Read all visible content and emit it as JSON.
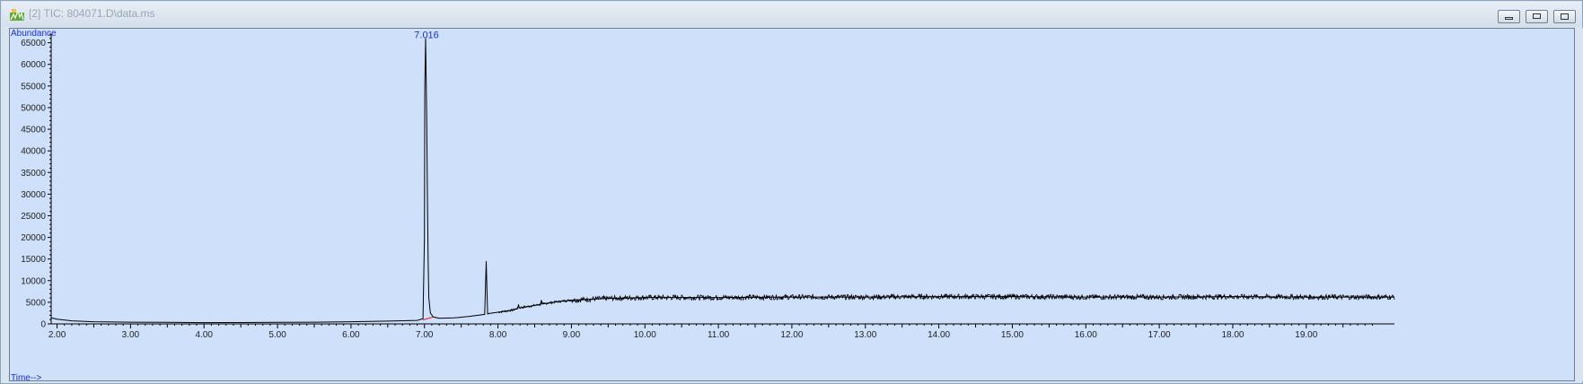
{
  "window": {
    "title": "[2] TIC: 804071.D\\data.ms",
    "icon": "chromatogram-app-icon",
    "buttons": [
      "minimize",
      "restore",
      "close"
    ]
  },
  "colors": {
    "plot_background": "#cfe0fb",
    "trace": "#000000",
    "axis_title": "#1a2fd0",
    "baseline_marker": "#e02020"
  },
  "chart_data": {
    "type": "line",
    "title": "TIC: 804071.D\\data.ms",
    "xlabel": "Time-->",
    "ylabel": "Abundance",
    "xlim": [
      1.92,
      20.2
    ],
    "ylim": [
      0,
      67000
    ],
    "x_ticks": [
      2,
      3,
      4,
      5,
      6,
      7,
      8,
      9,
      10,
      11,
      12,
      13,
      14,
      15,
      16,
      17,
      18,
      19
    ],
    "x_tick_labels": [
      "2.00",
      "3.00",
      "4.00",
      "5.00",
      "6.00",
      "7.00",
      "8.00",
      "9.00",
      "10.00",
      "11.00",
      "12.00",
      "13.00",
      "14.00",
      "15.00",
      "16.00",
      "17.00",
      "18.00",
      "19.00"
    ],
    "y_ticks": [
      0,
      5000,
      10000,
      15000,
      20000,
      25000,
      30000,
      35000,
      40000,
      45000,
      50000,
      55000,
      60000,
      65000
    ],
    "y_tick_labels": [
      "0",
      "5000",
      "10000",
      "15000",
      "20000",
      "25000",
      "30000",
      "35000",
      "40000",
      "45000",
      "50000",
      "55000",
      "60000",
      "65000"
    ],
    "annotations": [
      {
        "text": "7.016",
        "x": 7.016,
        "y": 66500
      }
    ],
    "series": [
      {
        "name": "TIC",
        "x": [
          1.92,
          2.0,
          2.2,
          2.5,
          3.0,
          3.5,
          4.0,
          4.5,
          5.0,
          5.5,
          6.0,
          6.5,
          6.9,
          6.98,
          7.0,
          7.005,
          7.016,
          7.03,
          7.04,
          7.05,
          7.06,
          7.08,
          7.12,
          7.2,
          7.4,
          7.6,
          7.82,
          7.84,
          7.85,
          7.86,
          7.88,
          8.0,
          8.2,
          8.27,
          8.28,
          8.29,
          8.4,
          8.58,
          8.59,
          8.6,
          8.8,
          9.0,
          9.5,
          10.0,
          10.5,
          11.0,
          12.0,
          13.0,
          14.0,
          15.0,
          16.0,
          17.0,
          18.0,
          19.0,
          20.0,
          20.2
        ],
        "y": [
          1400,
          1100,
          700,
          500,
          400,
          350,
          300,
          320,
          350,
          400,
          500,
          650,
          800,
          1200,
          20000,
          55000,
          66000,
          48000,
          30000,
          15000,
          6000,
          2500,
          1600,
          1300,
          1400,
          1700,
          2200,
          14500,
          8000,
          2300,
          2400,
          2700,
          3200,
          3600,
          4500,
          3700,
          4000,
          4500,
          5500,
          4600,
          5100,
          5500,
          5900,
          6100,
          6100,
          6100,
          6200,
          6200,
          6300,
          6300,
          6200,
          6200,
          6300,
          6200,
          6200,
          6200
        ]
      }
    ]
  }
}
